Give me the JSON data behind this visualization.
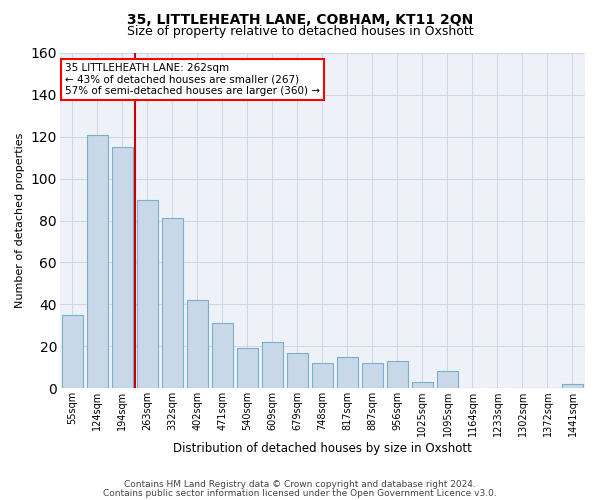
{
  "title1": "35, LITTLEHEATH LANE, COBHAM, KT11 2QN",
  "title2": "Size of property relative to detached houses in Oxshott",
  "xlabel": "Distribution of detached houses by size in Oxshott",
  "ylabel": "Number of detached properties",
  "categories": [
    "55sqm",
    "124sqm",
    "194sqm",
    "263sqm",
    "332sqm",
    "402sqm",
    "471sqm",
    "540sqm",
    "609sqm",
    "679sqm",
    "748sqm",
    "817sqm",
    "887sqm",
    "956sqm",
    "1025sqm",
    "1095sqm",
    "1164sqm",
    "1233sqm",
    "1302sqm",
    "1372sqm",
    "1441sqm"
  ],
  "values": [
    35,
    121,
    115,
    90,
    81,
    42,
    31,
    19,
    22,
    17,
    12,
    15,
    12,
    13,
    3,
    8,
    0,
    0,
    0,
    0,
    2
  ],
  "bar_color": "#c8d8e8",
  "bar_edge_color": "#7aafc8",
  "red_line_x": 2.5,
  "annotation_line1": "35 LITTLEHEATH LANE: 262sqm",
  "annotation_line2": "← 43% of detached houses are smaller (267)",
  "annotation_line3": "57% of semi-detached houses are larger (360) →",
  "annotation_box_color": "white",
  "annotation_box_edge_color": "red",
  "red_line_color": "#cc0000",
  "ylim": [
    0,
    160
  ],
  "yticks": [
    0,
    20,
    40,
    60,
    80,
    100,
    120,
    140,
    160
  ],
  "footer1": "Contains HM Land Registry data © Crown copyright and database right 2024.",
  "footer2": "Contains public sector information licensed under the Open Government Licence v3.0.",
  "grid_color": "#d0d8e8",
  "bg_color": "#eef2f8",
  "title1_fontsize": 10,
  "title2_fontsize": 9,
  "ylabel_fontsize": 8,
  "xlabel_fontsize": 8.5,
  "tick_fontsize": 7,
  "footer_fontsize": 6.5
}
